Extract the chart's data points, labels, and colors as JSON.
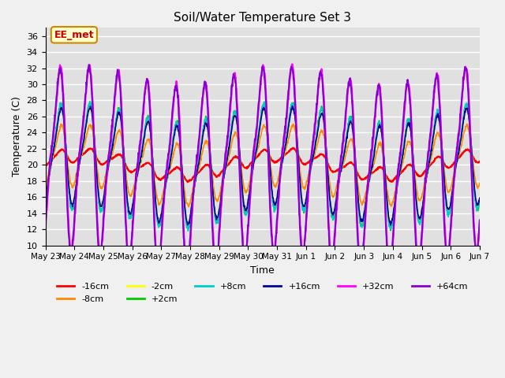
{
  "title": "Soil/Water Temperature Set 3",
  "xlabel": "Time",
  "ylabel": "Temperature (C)",
  "ylim": [
    10,
    37
  ],
  "yticks": [
    10,
    12,
    14,
    16,
    18,
    20,
    22,
    24,
    26,
    28,
    30,
    32,
    34,
    36
  ],
  "plot_bg_color": "#e0e0e0",
  "fig_bg_color": "#f0f0f0",
  "series": [
    {
      "label": "-16cm",
      "color": "#ff0000",
      "lw": 1.5,
      "depth": -16
    },
    {
      "label": "-8cm",
      "color": "#ff8800",
      "lw": 1.2,
      "depth": -8
    },
    {
      "label": "-2cm",
      "color": "#ffff00",
      "lw": 1.2,
      "depth": -2
    },
    {
      "label": "+2cm",
      "color": "#00cc00",
      "lw": 1.2,
      "depth": 2
    },
    {
      "label": "+8cm",
      "color": "#00cccc",
      "lw": 1.2,
      "depth": 8
    },
    {
      "label": "+16cm",
      "color": "#000099",
      "lw": 1.2,
      "depth": 16
    },
    {
      "label": "+32cm",
      "color": "#ff00ff",
      "lw": 1.5,
      "depth": 32
    },
    {
      "label": "+64cm",
      "color": "#8800cc",
      "lw": 1.5,
      "depth": 64
    }
  ],
  "annotation_text": "EE_met",
  "annotation_color": "#cc0000",
  "annotation_bg": "#ffffcc",
  "annotation_border": "#cc8800",
  "n_days": 15,
  "base_temp": 20.0,
  "x_tick_labels": [
    "May 23",
    "May 24",
    "May 25",
    "May 26",
    "May 27",
    "May 28",
    "May 29",
    "May 30",
    "May 31",
    "Jun 1",
    "Jun 2",
    "Jun 3",
    "Jun 4",
    "Jun 5",
    "Jun 6",
    "Jun 7"
  ]
}
